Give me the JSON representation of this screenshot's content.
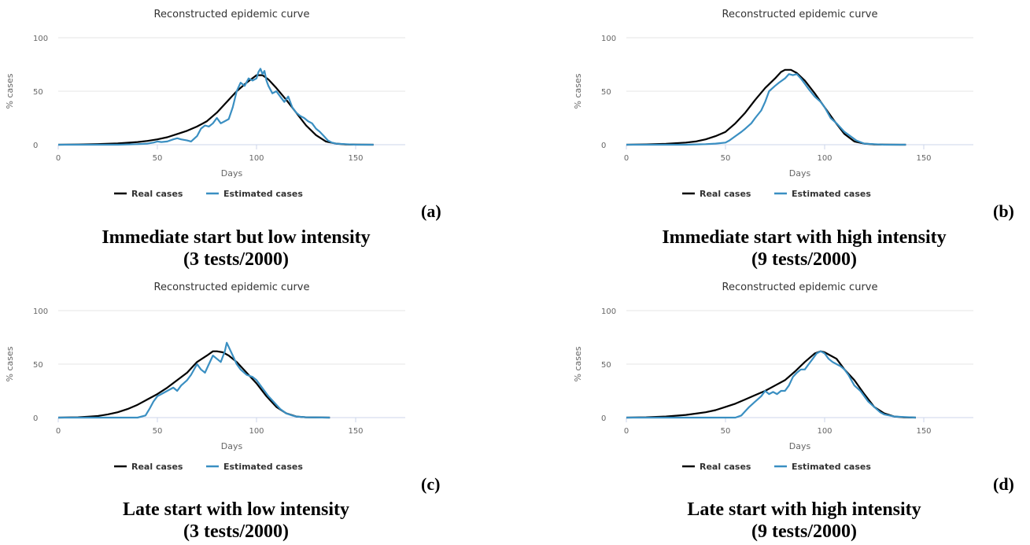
{
  "legend": {
    "real": "Real cases",
    "estimated": "Estimated cases"
  },
  "colors": {
    "real": "#000000",
    "estimated": "#3a8fc2",
    "grid": "#e6e6e6",
    "axis": "#ccd6eb"
  },
  "panels": [
    {
      "letter": "(a)",
      "caption_line1": "Immediate start but low intensity",
      "caption_line2": "(3 tests/2000)"
    },
    {
      "letter": "(b)",
      "caption_line1": "Immediate start with high intensity",
      "caption_line2": "(9 tests/2000)"
    },
    {
      "letter": "(c)",
      "caption_line1": "Late start with low intensity",
      "caption_line2": "(3 tests/2000)"
    },
    {
      "letter": "(d)",
      "caption_line1": "Late start with high intensity",
      "caption_line2": "(9 tests/2000)"
    }
  ],
  "chart_data": [
    {
      "type": "line",
      "title": "Reconstructed epidemic curve",
      "xlabel": "Days",
      "ylabel": "% cases",
      "xlim": [
        0,
        175
      ],
      "ylim": [
        0,
        100
      ],
      "xticks": [
        0,
        50,
        100,
        150
      ],
      "yticks": [
        0,
        50,
        100
      ],
      "grid": true,
      "legend_position": "bottom",
      "series": [
        {
          "name": "Real cases",
          "x": [
            0,
            10,
            20,
            30,
            40,
            45,
            50,
            55,
            60,
            65,
            70,
            75,
            80,
            85,
            90,
            95,
            100,
            103,
            106,
            110,
            115,
            120,
            125,
            130,
            135,
            140,
            145,
            150,
            159
          ],
          "y": [
            0,
            0.2,
            0.6,
            1.2,
            2.5,
            3.5,
            5,
            7,
            10,
            13,
            17,
            22,
            30,
            40,
            50,
            58,
            65,
            65,
            61,
            53,
            42,
            30,
            18,
            9,
            3,
            1,
            0.3,
            0.1,
            0
          ]
        },
        {
          "name": "Estimated cases",
          "x": [
            0,
            10,
            20,
            30,
            40,
            45,
            48,
            50,
            52,
            55,
            58,
            60,
            62,
            65,
            67,
            70,
            72,
            74,
            76,
            78,
            80,
            82,
            84,
            86,
            88,
            90,
            92,
            94,
            96,
            98,
            100,
            101,
            102,
            103,
            104,
            105,
            106,
            108,
            110,
            112,
            114,
            116,
            118,
            120,
            122,
            124,
            126,
            128,
            130,
            132,
            134,
            136,
            138,
            140,
            145,
            150,
            159
          ],
          "y": [
            0,
            0,
            0,
            0,
            0.5,
            1,
            2,
            3,
            2.5,
            3,
            5,
            6,
            5,
            4,
            3,
            8,
            15,
            18,
            17,
            20,
            25,
            20,
            22,
            24,
            35,
            50,
            58,
            55,
            62,
            60,
            62,
            68,
            71,
            66,
            69,
            60,
            55,
            48,
            50,
            45,
            40,
            45,
            35,
            30,
            27,
            25,
            22,
            20,
            15,
            12,
            8,
            4,
            2,
            1,
            0.5,
            0,
            0
          ]
        }
      ]
    },
    {
      "type": "line",
      "title": "Reconstructed epidemic curve",
      "xlabel": "Days",
      "ylabel": "% cases",
      "xlim": [
        0,
        175
      ],
      "ylim": [
        0,
        100
      ],
      "xticks": [
        0,
        50,
        100,
        150
      ],
      "yticks": [
        0,
        50,
        100
      ],
      "grid": true,
      "legend_position": "bottom",
      "series": [
        {
          "name": "Real cases",
          "x": [
            0,
            10,
            20,
            30,
            35,
            40,
            45,
            50,
            55,
            60,
            65,
            70,
            75,
            78,
            80,
            83,
            86,
            90,
            95,
            100,
            105,
            110,
            115,
            120,
            125,
            130,
            141
          ],
          "y": [
            0,
            0.3,
            0.8,
            2,
            3,
            5,
            8,
            12,
            20,
            30,
            42,
            53,
            62,
            68,
            70,
            70,
            67,
            60,
            48,
            35,
            22,
            10,
            3,
            1,
            0.3,
            0.1,
            0
          ]
        },
        {
          "name": "Estimated cases",
          "x": [
            0,
            10,
            20,
            30,
            40,
            45,
            50,
            52,
            55,
            58,
            60,
            63,
            65,
            68,
            70,
            72,
            75,
            77,
            80,
            82,
            84,
            86,
            88,
            90,
            92,
            95,
            98,
            100,
            103,
            106,
            110,
            113,
            116,
            120,
            125,
            130,
            141
          ],
          "y": [
            0,
            0,
            0,
            0,
            0.5,
            1,
            2,
            4,
            8,
            12,
            15,
            20,
            25,
            32,
            40,
            50,
            55,
            58,
            62,
            66,
            65,
            66,
            62,
            57,
            52,
            45,
            40,
            35,
            25,
            20,
            12,
            8,
            4,
            1,
            0.5,
            0,
            0
          ]
        }
      ]
    },
    {
      "type": "line",
      "title": "Reconstructed epidemic curve",
      "xlabel": "Days",
      "ylabel": "% cases",
      "xlim": [
        0,
        175
      ],
      "ylim": [
        0,
        100
      ],
      "xticks": [
        0,
        50,
        100,
        150
      ],
      "yticks": [
        0,
        50,
        100
      ],
      "grid": true,
      "legend_position": "bottom",
      "series": [
        {
          "name": "Real cases",
          "x": [
            0,
            10,
            15,
            20,
            25,
            30,
            35,
            40,
            45,
            50,
            55,
            60,
            65,
            70,
            75,
            78,
            80,
            83,
            86,
            90,
            95,
            100,
            105,
            110,
            115,
            120,
            125,
            137
          ],
          "y": [
            0,
            0.3,
            0.8,
            1.5,
            3,
            5,
            8,
            12,
            17,
            22,
            28,
            35,
            42,
            52,
            58,
            62,
            62,
            61,
            58,
            52,
            42,
            32,
            20,
            10,
            4,
            1,
            0.3,
            0
          ]
        },
        {
          "name": "Estimated cases",
          "x": [
            0,
            10,
            20,
            30,
            40,
            44,
            46,
            48,
            50,
            52,
            55,
            58,
            60,
            62,
            65,
            67,
            70,
            72,
            74,
            76,
            78,
            80,
            82,
            84,
            85,
            86,
            88,
            90,
            92,
            95,
            98,
            100,
            102,
            104,
            106,
            108,
            110,
            112,
            115,
            118,
            120,
            125,
            137
          ],
          "y": [
            0,
            0,
            0,
            0,
            0,
            2,
            8,
            15,
            20,
            22,
            25,
            28,
            25,
            30,
            35,
            40,
            50,
            45,
            42,
            50,
            58,
            55,
            52,
            62,
            70,
            66,
            58,
            50,
            45,
            40,
            38,
            35,
            30,
            25,
            20,
            16,
            12,
            8,
            4,
            2,
            1,
            0.3,
            0
          ]
        }
      ]
    },
    {
      "type": "line",
      "title": "Reconstructed epidemic curve",
      "xlabel": "Days",
      "ylabel": "% cases",
      "xlim": [
        0,
        175
      ],
      "ylim": [
        0,
        100
      ],
      "xticks": [
        0,
        50,
        100,
        150
      ],
      "yticks": [
        0,
        50,
        100
      ],
      "grid": true,
      "legend_position": "bottom",
      "series": [
        {
          "name": "Real cases",
          "x": [
            0,
            10,
            20,
            30,
            40,
            45,
            50,
            55,
            60,
            65,
            70,
            75,
            80,
            85,
            90,
            95,
            98,
            100,
            103,
            106,
            110,
            115,
            120,
            125,
            130,
            135,
            140,
            146
          ],
          "y": [
            0,
            0.3,
            1,
            2.5,
            5,
            7,
            10,
            13,
            17,
            21,
            25,
            30,
            35,
            43,
            52,
            60,
            62,
            61,
            58,
            55,
            45,
            35,
            22,
            10,
            4,
            1,
            0.3,
            0
          ]
        },
        {
          "name": "Estimated cases",
          "x": [
            0,
            10,
            20,
            30,
            40,
            50,
            55,
            58,
            60,
            62,
            65,
            68,
            70,
            72,
            74,
            76,
            78,
            80,
            82,
            84,
            86,
            88,
            90,
            92,
            94,
            96,
            98,
            100,
            102,
            104,
            106,
            108,
            110,
            112,
            115,
            118,
            120,
            122,
            125,
            128,
            130,
            135,
            146
          ],
          "y": [
            0,
            0,
            0,
            0,
            0,
            0,
            0,
            2,
            6,
            10,
            15,
            20,
            25,
            22,
            24,
            22,
            25,
            25,
            30,
            38,
            42,
            45,
            45,
            50,
            55,
            60,
            62,
            60,
            55,
            52,
            50,
            48,
            45,
            40,
            30,
            25,
            20,
            15,
            10,
            5,
            3,
            1,
            0
          ]
        }
      ]
    }
  ]
}
